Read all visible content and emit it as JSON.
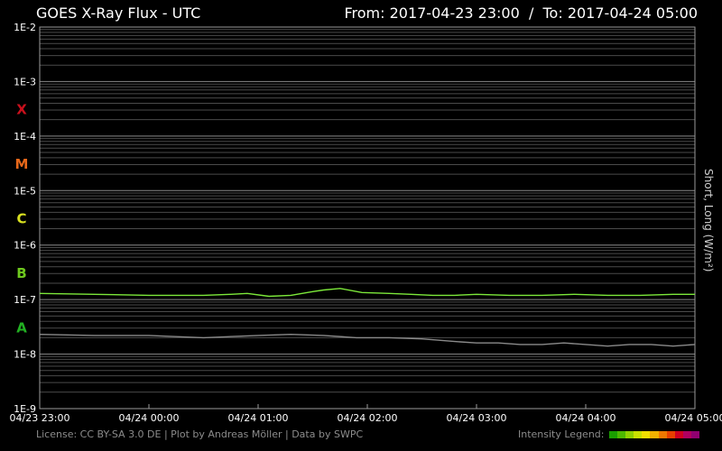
{
  "header": {
    "title": "GOES X-Ray Flux - UTC",
    "range_text": "From: 2017-04-23 23:00  /  To: 2017-04-24 05:00"
  },
  "footer": {
    "credits": "License: CC BY-SA 3.0 DE | Plot by Andreas Möller | Data by SWPC",
    "legend_label": "Intensity Legend:",
    "legend_colors": [
      "#1a9e00",
      "#4cb800",
      "#8fd000",
      "#c8e000",
      "#f0e000",
      "#f0b000",
      "#f07800",
      "#e84000",
      "#d00020",
      "#b00060",
      "#900070"
    ]
  },
  "chart_data": {
    "type": "line",
    "title": "GOES X-Ray Flux - UTC",
    "ylabel": "Short, Long (W/m²)",
    "xlabel": "",
    "y_scale": "log",
    "ylim": [
      1e-09,
      0.01
    ],
    "y_ticks": [
      "1E-9",
      "1E-8",
      "1E-7",
      "1E-6",
      "1E-5",
      "1E-4",
      "1E-3",
      "1E-2"
    ],
    "x_ticks": [
      "04/23 23:00",
      "04/24 00:00",
      "04/24 01:00",
      "04/24 02:00",
      "04/24 03:00",
      "04/24 04:00",
      "04/24 05:00"
    ],
    "x_tick_hours": [
      0,
      1,
      2,
      3,
      4,
      5,
      6
    ],
    "flare_classes": [
      {
        "label": "X",
        "color": "#c8101c"
      },
      {
        "label": "M",
        "color": "#e8681a"
      },
      {
        "label": "C",
        "color": "#d8e020"
      },
      {
        "label": "B",
        "color": "#6ec81e"
      },
      {
        "label": "A",
        "color": "#22b022"
      }
    ],
    "grid": true,
    "series": [
      {
        "name": "Long",
        "color": "#7ce83a",
        "x": [
          0,
          0.5,
          1.0,
          1.5,
          1.75,
          1.9,
          2.1,
          2.3,
          2.5,
          2.6,
          2.75,
          2.95,
          3.2,
          3.4,
          3.6,
          3.8,
          4.0,
          4.3,
          4.6,
          4.9,
          5.2,
          5.5,
          5.8,
          6.0
        ],
        "y": [
          1.3e-07,
          1.25e-07,
          1.2e-07,
          1.2e-07,
          1.25e-07,
          1.3e-07,
          1.15e-07,
          1.2e-07,
          1.4e-07,
          1.5e-07,
          1.6e-07,
          1.35e-07,
          1.3e-07,
          1.25e-07,
          1.2e-07,
          1.2e-07,
          1.25e-07,
          1.2e-07,
          1.2e-07,
          1.25e-07,
          1.2e-07,
          1.2e-07,
          1.25e-07,
          1.25e-07
        ]
      },
      {
        "name": "Short",
        "color": "#8a8a8a",
        "x": [
          0,
          0.5,
          1.0,
          1.5,
          2.0,
          2.3,
          2.6,
          2.9,
          3.2,
          3.5,
          3.8,
          4.0,
          4.2,
          4.4,
          4.6,
          4.8,
          5.0,
          5.2,
          5.4,
          5.6,
          5.8,
          6.0
        ],
        "y": [
          2.3e-08,
          2.2e-08,
          2.2e-08,
          2e-08,
          2.2e-08,
          2.3e-08,
          2.2e-08,
          2e-08,
          2e-08,
          1.9e-08,
          1.7e-08,
          1.6e-08,
          1.6e-08,
          1.5e-08,
          1.5e-08,
          1.6e-08,
          1.5e-08,
          1.4e-08,
          1.5e-08,
          1.5e-08,
          1.4e-08,
          1.5e-08
        ]
      }
    ]
  }
}
